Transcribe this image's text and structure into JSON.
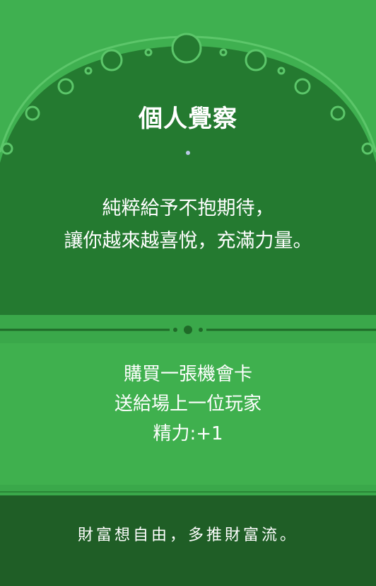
{
  "card": {
    "title": "個人覺察",
    "quote_lines": [
      "純粹給予不抱期待，",
      "讓你越來越喜悅，充滿力量。"
    ],
    "effect_lines": [
      "購買一張機會卡",
      "送給場上一位玩家",
      "精力:+1"
    ],
    "slogan": "財富想自由，多推財富流。"
  },
  "colors": {
    "bright_green": "#3fb050",
    "dark_green": "#1f5e26",
    "arch_green": "#247a30",
    "text": "#ffffff"
  }
}
